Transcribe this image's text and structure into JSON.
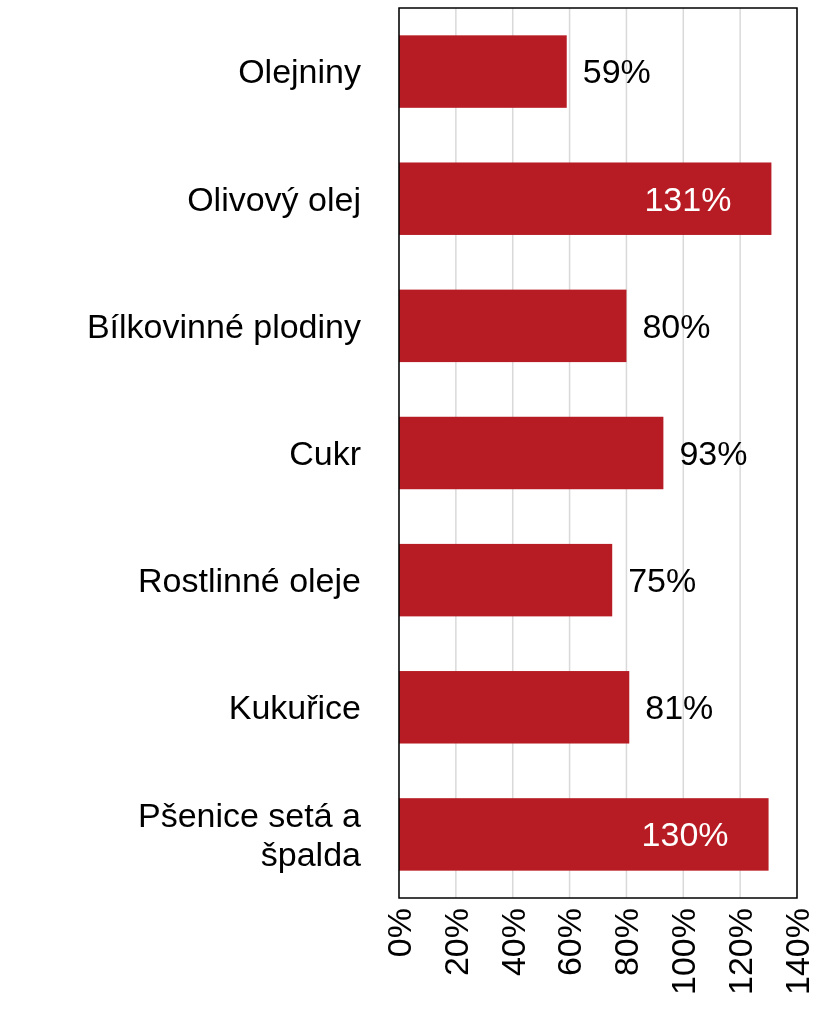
{
  "chart_data": {
    "type": "bar",
    "orientation": "horizontal",
    "categories": [
      "Olejniny",
      "Olivový olej",
      "Bílkovinné plodiny",
      "Cukr",
      "Rostlinné oleje",
      "Kukuřice",
      "Pšenice setá a špalda"
    ],
    "values": [
      59,
      131,
      80,
      93,
      75,
      81,
      130
    ],
    "value_labels": [
      "59%",
      "131%",
      "80%",
      "93%",
      "75%",
      "81%",
      "130%"
    ],
    "color": "#b71c24",
    "xlim": [
      0,
      140
    ],
    "xticks": [
      {
        "value": 0,
        "label": "0%"
      },
      {
        "value": 20,
        "label": "20%"
      },
      {
        "value": 40,
        "label": "40%"
      },
      {
        "value": 60,
        "label": "60%"
      },
      {
        "value": 80,
        "label": "80%"
      },
      {
        "value": 100,
        "label": "100%"
      },
      {
        "value": 120,
        "label": "120%"
      },
      {
        "value": 140,
        "label": "140%"
      }
    ],
    "grid": "x"
  }
}
